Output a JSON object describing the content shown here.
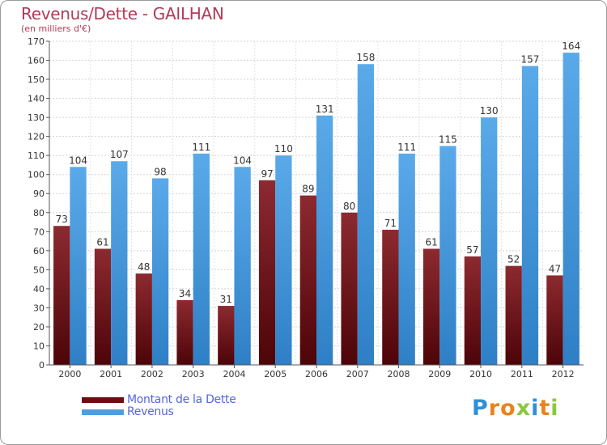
{
  "title": "Revenus/Dette - GAILHAN",
  "subtitle": "(en milliers d'€)",
  "chart_data": {
    "type": "bar",
    "title": "Revenus/Dette - GAILHAN",
    "ylabel": "(en milliers d'€)",
    "categories": [
      "2000",
      "2001",
      "2002",
      "2003",
      "2004",
      "2005",
      "2006",
      "2007",
      "2008",
      "2009",
      "2010",
      "2011",
      "2012"
    ],
    "series": [
      {
        "name": "Montant de la Dette",
        "color": "#6b0d12",
        "values": [
          73,
          61,
          48,
          34,
          31,
          97,
          89,
          80,
          71,
          61,
          57,
          52,
          47
        ]
      },
      {
        "name": "Revenus",
        "color": "#4d9de0",
        "values": [
          104,
          107,
          98,
          111,
          104,
          110,
          131,
          158,
          111,
          115,
          130,
          157,
          164
        ]
      }
    ],
    "ylim": [
      0,
      170
    ],
    "ytick_step": 10,
    "grid": true,
    "legend_position": "bottom-left"
  },
  "logo": {
    "letters": [
      {
        "ch": "P",
        "color": "#2f8fd8"
      },
      {
        "ch": "r",
        "color": "#e9831f"
      },
      {
        "ch": "o",
        "color": "#e9831f"
      },
      {
        "ch": "x",
        "color": "#8cc63f"
      },
      {
        "ch": "i",
        "color": "#2f8fd8"
      },
      {
        "ch": "t",
        "color": "#e9831f"
      },
      {
        "ch": "i",
        "color": "#8cc63f"
      }
    ]
  }
}
